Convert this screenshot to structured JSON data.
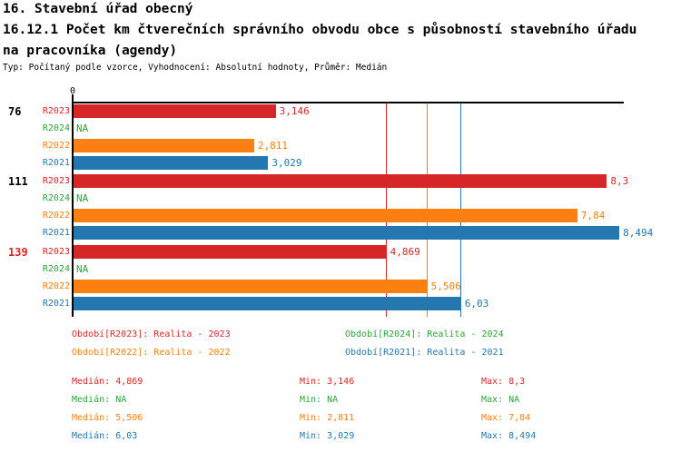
{
  "header": {
    "title": "16. Stavební úřad obecný",
    "subtitle_lines": [
      "16.12.1 Počet km čtverečních správního obvodu obce s působností stavebního úřadu",
      "na pracovníka (agendy)"
    ],
    "meta": "Typ: Počítaný podle vzorce, Vyhodnocení: Absolutní hodnoty, Průměr: Medián"
  },
  "series": [
    {
      "id": "R2023",
      "color": "#d62728",
      "legend": "Období[R2023]: Realita - 2023"
    },
    {
      "id": "R2024",
      "color": "#2da33a",
      "legend": "Období[R2024]: Realita - 2024"
    },
    {
      "id": "R2022",
      "color": "#fb8011",
      "legend": "Období[R2022]: Realita - 2022"
    },
    {
      "id": "R2021",
      "color": "#2577b0",
      "legend": "Období[R2021]: Realita - 2021"
    }
  ],
  "chart_data": {
    "type": "bar",
    "orientation": "horizontal",
    "x_axis": {
      "origin_label": "0",
      "min": 0,
      "max": 8.56,
      "grid": false
    },
    "row_order": [
      "R2023",
      "R2024",
      "R2022",
      "R2021"
    ],
    "na_text": "NA",
    "groups": [
      {
        "label": "76",
        "label_color": "#000000",
        "bars": [
          {
            "series": "R2023",
            "value": 3.146,
            "display": "3,146"
          },
          {
            "series": "R2024",
            "value": null,
            "display": "NA"
          },
          {
            "series": "R2022",
            "value": 2.811,
            "display": "2,811"
          },
          {
            "series": "R2021",
            "value": 3.029,
            "display": "3,029"
          }
        ]
      },
      {
        "label": "111",
        "label_color": "#000000",
        "bars": [
          {
            "series": "R2023",
            "value": 8.3,
            "display": "8,3"
          },
          {
            "series": "R2024",
            "value": null,
            "display": "NA"
          },
          {
            "series": "R2022",
            "value": 7.84,
            "display": "7,84"
          },
          {
            "series": "R2021",
            "value": 8.494,
            "display": "8,494"
          }
        ]
      },
      {
        "label": "139",
        "label_color": "#d62728",
        "bars": [
          {
            "series": "R2023",
            "value": 4.869,
            "display": "4,869"
          },
          {
            "series": "R2024",
            "value": null,
            "display": "NA"
          },
          {
            "series": "R2022",
            "value": 5.506,
            "display": "5,506"
          },
          {
            "series": "R2021",
            "value": 6.03,
            "display": "6,03"
          }
        ]
      }
    ],
    "median_lines": [
      {
        "series": "R2023",
        "value": 4.869
      },
      {
        "series": "R2022",
        "value": 5.506
      },
      {
        "series": "R2021",
        "value": 6.03
      }
    ]
  },
  "legend_grid": [
    [
      "R2023",
      "R2024"
    ],
    [
      "R2022",
      "R2021"
    ]
  ],
  "stats": {
    "labels": {
      "median": "Medián:",
      "min": "Min:",
      "max": "Max:"
    },
    "rows": [
      {
        "series": "R2023",
        "median": "4,869",
        "min": "3,146",
        "max": "8,3"
      },
      {
        "series": "R2024",
        "median": "NA",
        "min": "NA",
        "max": "NA"
      },
      {
        "series": "R2022",
        "median": "5,506",
        "min": "2,811",
        "max": "7,84"
      },
      {
        "series": "R2021",
        "median": "6,03",
        "min": "3,029",
        "max": "8,494"
      }
    ]
  }
}
